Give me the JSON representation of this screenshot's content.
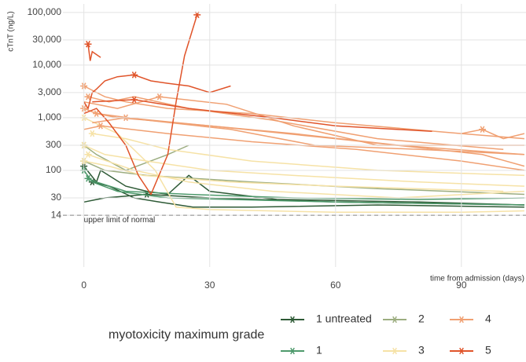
{
  "chart_data": {
    "type": "line",
    "log_y": true,
    "grid": true,
    "xlabel": "time from admission (days)",
    "ylabel": "cTnT (ng/L)",
    "xlim": [
      -5,
      105.4
    ],
    "xticks": [
      0,
      30,
      60,
      90
    ],
    "ylim": [
      1.46,
      145000
    ],
    "yticks": [
      14,
      30,
      100,
      300,
      {
        "value": 1000,
        "label": "1,000"
      },
      {
        "value": 3000,
        "label": "3,000"
      },
      {
        "value": 10000,
        "label": "10,000"
      },
      {
        "value": 30000,
        "label": "30,000"
      },
      {
        "value": 100000,
        "label": "100,000"
      }
    ],
    "reference_line": {
      "value": 14,
      "label": "upper limit of normal"
    },
    "legend_title": "myotoxicity maximum grade",
    "series": [
      {
        "name": "1 untreated",
        "color": "#2e5a36",
        "lines": [
          {
            "x": [
              0,
              3,
              4,
              10,
              15,
              20,
              25,
              30,
              46,
              80,
              105
            ],
            "values": [
              120,
              60,
              100,
              50,
              40,
              35,
              80,
              40,
              28,
              25,
              22
            ]
          },
          {
            "x": [
              0,
              5,
              15,
              30,
              60,
              105
            ],
            "values": [
              25,
              30,
              35,
              30,
              25,
              22
            ]
          },
          {
            "x": [
              2,
              6,
              12,
              18,
              26,
              40,
              70,
              105
            ],
            "values": [
              60,
              50,
              30,
              25,
              20,
              20,
              22,
              20
            ]
          }
        ]
      },
      {
        "name": "1",
        "color": "#4e9a6c",
        "lines": [
          {
            "x": [
              1,
              3,
              10,
              25,
              50,
              80,
              105
            ],
            "values": [
              70,
              60,
              40,
              35,
              30,
              28,
              30
            ]
          },
          {
            "x": [
              0,
              2,
              8,
              20,
              60,
              105
            ],
            "values": [
              100,
              60,
              40,
              30,
              25,
              22
            ]
          }
        ]
      },
      {
        "name": "2",
        "color": "#9cad80",
        "lines": [
          {
            "x": [
              0,
              3,
              10,
              20,
              25
            ],
            "values": [
              300,
              200,
              100,
              200,
              300
            ]
          },
          {
            "x": [
              0,
              5,
              15,
              40,
              70,
              105
            ],
            "values": [
              150,
              100,
              80,
              60,
              45,
              35
            ]
          }
        ]
      },
      {
        "name": "3",
        "color": "#f6e2a6",
        "lines": [
          {
            "x": [
              0,
              5,
              15,
              30,
              50,
              80,
              105
            ],
            "values": [
              300,
              200,
              150,
              100,
              80,
              60,
              50
            ]
          },
          {
            "x": [
              2,
              10,
              20,
              40,
              70,
              105
            ],
            "values": [
              500,
              400,
              250,
              150,
              100,
              80
            ]
          },
          {
            "x": [
              0,
              8,
              17,
              22,
              30,
              60,
              90,
              105
            ],
            "values": [
              1000,
              500,
              100,
              20,
              18,
              16,
              16,
              17
            ]
          },
          {
            "x": [
              1,
              12,
              25,
              45,
              75,
              105
            ],
            "values": [
              200,
              100,
              60,
              40,
              30,
              40
            ]
          },
          {
            "x": [
              0,
              6,
              14,
              35,
              60,
              100
            ],
            "values": [
              150,
              120,
              80,
              60,
              50,
              40
            ]
          }
        ]
      },
      {
        "name": "4",
        "color": "#f0a072",
        "lines": [
          {
            "x": [
              0,
              5,
              10,
              20,
              40,
              60,
              90,
              105
            ],
            "values": [
              4000,
              2500,
              2000,
              1500,
              1200,
              800,
              500,
              400
            ]
          },
          {
            "x": [
              0,
              3,
              8,
              15,
              30,
              50,
              75,
              105
            ],
            "values": [
              1500,
              1200,
              1000,
              900,
              700,
              500,
              300,
              200
            ]
          },
          {
            "x": [
              1,
              6,
              12,
              25,
              45,
              70,
              100
            ],
            "values": [
              2500,
              2000,
              2500,
              1500,
              900,
              400,
              250
            ]
          },
          {
            "x": [
              2,
              10,
              30,
              60,
              95,
              105
            ],
            "values": [
              800,
              1000,
              700,
              400,
              200,
              120
            ]
          },
          {
            "x": [
              0,
              4,
              20,
              40,
              65,
              90,
              105
            ],
            "values": [
              600,
              700,
              500,
              350,
              250,
              150,
              100
            ]
          },
          {
            "x": [
              3,
              15,
              35,
              55,
              80,
              105
            ],
            "values": [
              1200,
              900,
              600,
              300,
              250,
              200
            ]
          },
          {
            "x": [
              0,
              8,
              18,
              34,
              50,
              70,
              105
            ],
            "values": [
              2000,
              1500,
              2500,
              1800,
              700,
              300,
              300
            ]
          },
          {
            "x": [
              90,
              95,
              100,
              105
            ],
            "values": [
              500,
              600,
              400,
              500
            ]
          }
        ]
      },
      {
        "name": "5",
        "color": "#e0542a",
        "lines": [
          {
            "x": [
              0,
              1,
              2,
              3,
              5,
              8,
              12,
              16,
              20,
              25,
              30,
              35
            ],
            "values": [
              2000,
              1500,
              3000,
              3500,
              5000,
              6000,
              6500,
              5000,
              4500,
              4000,
              3000,
              4000
            ]
          },
          {
            "x": [
              1,
              1.5,
              2,
              4
            ],
            "values": [
              25000,
              12000,
              18000,
              14000
            ]
          },
          {
            "x": [
              0,
              3,
              6,
              10,
              13,
              16,
              20,
              22,
              24,
              26,
              27
            ],
            "values": [
              1200,
              1500,
              800,
              300,
              80,
              35,
              200,
              2000,
              15000,
              50000,
              90000
            ]
          },
          {
            "x": [
              2,
              12,
              25,
              45,
              60,
              83
            ],
            "values": [
              2000,
              2200,
              1500,
              1000,
              700,
              550
            ]
          }
        ]
      }
    ]
  }
}
